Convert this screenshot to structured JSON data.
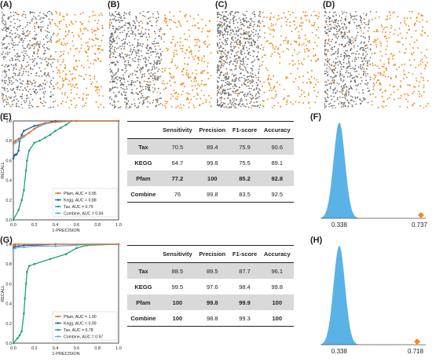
{
  "panels": {
    "A": "(A)",
    "B": "(B)",
    "C": "(C)",
    "D": "(D)",
    "E": "(E)",
    "F": "(F)",
    "G": "(G)",
    "H": "(H)"
  },
  "colors": {
    "pfam": "#e8702a",
    "kegg": "#1f5fa0",
    "tax": "#1aa37a",
    "combine": "#62b0e0",
    "density": "#5bb2e6",
    "gray_point": "#6e6e6e",
    "orange_point": "#f08a1e",
    "table_shade": "#d9d9d9"
  },
  "table_headers": [
    "",
    "Sensitivity",
    "Precision",
    "F1-score",
    "Accuracy"
  ],
  "table_top": [
    {
      "name": "Tax",
      "cells": [
        "70.5",
        "89.4",
        "75.9",
        "90.6"
      ]
    },
    {
      "name": "KEGG",
      "cells": [
        "64.7",
        "99.8",
        "75.5",
        "89.1"
      ]
    },
    {
      "name": "Pfam",
      "cells": [
        "77.2",
        "100",
        "85.2",
        "92.8"
      ]
    },
    {
      "name": "Combine",
      "cells": [
        "76",
        "99.8",
        "83.5",
        "92.5"
      ]
    }
  ],
  "table_bottom": [
    {
      "name": "Tax",
      "cells": [
        "88.5",
        "89.5",
        "87.7",
        "96.1"
      ]
    },
    {
      "name": "KEGG",
      "cells": [
        "99.5",
        "97.6",
        "98.4",
        "99.8"
      ]
    },
    {
      "name": "Pfam",
      "cells": [
        "100",
        "99.8",
        "99.9",
        "100"
      ]
    },
    {
      "name": "Combine",
      "cells": [
        "100",
        "98.8",
        "99.3",
        "100"
      ]
    }
  ],
  "chart_data": [
    {
      "type": "line",
      "panel": "E",
      "xlabel": "1-PRECISION",
      "ylabel": "RECALL",
      "xlim": [
        0,
        1
      ],
      "ylim": [
        0,
        1
      ],
      "ticks": [
        "0.0",
        "0.2",
        "0.4",
        "0.6",
        "0.8",
        "1.0"
      ],
      "legend_position": "bottom-right",
      "series": [
        {
          "name": "Pfam, AUC = 0.95",
          "key": "pfam",
          "x": [
            0,
            0.02,
            0.05,
            0.1,
            0.15,
            0.2,
            0.25,
            0.3,
            0.4,
            0.6,
            1.0
          ],
          "y": [
            0.78,
            0.8,
            0.82,
            0.85,
            0.88,
            0.92,
            0.96,
            0.98,
            0.99,
            1.0,
            1.0
          ]
        },
        {
          "name": "Kegg, AUC = 0.88",
          "key": "kegg",
          "x": [
            0,
            0.01,
            0.02,
            0.03,
            0.05,
            0.06,
            0.08,
            0.1,
            0.2,
            0.4,
            1.0
          ],
          "y": [
            0.62,
            0.65,
            0.66,
            0.66,
            0.7,
            0.8,
            0.86,
            0.9,
            0.95,
            1.0,
            1.0
          ]
        },
        {
          "name": "Tax, AUC = 0.79",
          "key": "tax",
          "x": [
            0,
            0.05,
            0.08,
            0.1,
            0.12,
            0.13,
            0.15,
            0.2,
            0.25,
            0.3,
            0.35,
            0.4,
            0.45,
            0.5,
            0.55,
            1.0
          ],
          "y": [
            0,
            0.1,
            0.2,
            0.3,
            0.5,
            0.6,
            0.7,
            0.78,
            0.8,
            0.83,
            0.86,
            0.9,
            0.93,
            0.96,
            1.0,
            1.0
          ]
        },
        {
          "name": "Combine, AUC = 0.94",
          "key": "combine",
          "x": [
            0,
            0.02,
            0.05,
            0.1,
            0.15,
            0.2,
            0.3,
            0.4,
            0.6,
            1.0
          ],
          "y": [
            0.76,
            0.78,
            0.8,
            0.84,
            0.88,
            0.92,
            0.97,
            0.99,
            1.0,
            1.0
          ]
        }
      ]
    },
    {
      "type": "line",
      "panel": "G",
      "xlabel": "1-PRECISION",
      "ylabel": "RECALL",
      "xlim": [
        0,
        1
      ],
      "ylim": [
        0,
        1
      ],
      "ticks": [
        "0.0",
        "0.2",
        "0.4",
        "0.6",
        "0.8",
        "1.0"
      ],
      "legend_position": "bottom-right",
      "series": [
        {
          "name": "Pfam, AUC = 1.00",
          "key": "pfam",
          "x": [
            0,
            0.01,
            0.02,
            0.05,
            1.0
          ],
          "y": [
            0.98,
            0.99,
            1.0,
            1.0,
            1.0
          ]
        },
        {
          "name": "Kegg, AUC = 0.99",
          "key": "kegg",
          "x": [
            0,
            0.01,
            0.02,
            0.05,
            0.1,
            0.2,
            0.4,
            1.0
          ],
          "y": [
            0.96,
            0.97,
            0.98,
            0.98,
            0.99,
            0.99,
            1.0,
            1.0
          ]
        },
        {
          "name": "Tax, AUC = 0.78",
          "key": "tax",
          "x": [
            0,
            0.04,
            0.06,
            0.08,
            0.1,
            0.11,
            0.12,
            0.13,
            0.15,
            0.2,
            0.35,
            0.5,
            0.6,
            0.7,
            1.0
          ],
          "y": [
            0,
            0.05,
            0.08,
            0.12,
            0.3,
            0.45,
            0.6,
            0.72,
            0.78,
            0.8,
            0.85,
            0.9,
            0.96,
            0.99,
            1.0
          ]
        },
        {
          "name": "Combine, AUC = 0.97",
          "key": "combine",
          "x": [
            0,
            0.02,
            0.05,
            0.1,
            0.2,
            0.4,
            0.6,
            0.75,
            1.0
          ],
          "y": [
            0.95,
            0.96,
            0.97,
            0.97,
            0.98,
            0.98,
            0.99,
            1.0,
            1.0
          ]
        }
      ]
    },
    {
      "type": "area",
      "panel": "F",
      "annotations": [
        "0.338",
        "0.737"
      ],
      "mean": 0.338,
      "observed": 0.737,
      "xlim": [
        0.25,
        0.76
      ]
    },
    {
      "type": "area",
      "panel": "H",
      "annotations": [
        "0.338",
        "0.718"
      ],
      "mean": 0.338,
      "observed": 0.718,
      "xlim": [
        0.25,
        0.76
      ]
    }
  ]
}
